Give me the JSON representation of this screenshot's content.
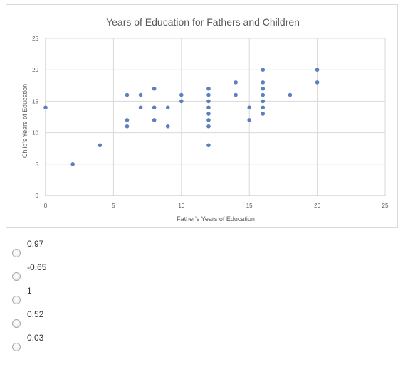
{
  "chart_data": {
    "type": "scatter",
    "title": "Years of Education for Fathers and Children",
    "xlabel": "Father's Years of Education",
    "ylabel": "Child's Years of Education",
    "xlim": [
      0,
      25
    ],
    "ylim": [
      0,
      25
    ],
    "xticks": [
      0,
      5,
      10,
      15,
      20,
      25
    ],
    "yticks": [
      0,
      5,
      10,
      15,
      20,
      25
    ],
    "grid": true,
    "marker_color": "#5b7fbf",
    "points": [
      [
        0,
        14
      ],
      [
        2,
        5
      ],
      [
        4,
        8
      ],
      [
        6,
        16
      ],
      [
        6,
        12
      ],
      [
        6,
        11
      ],
      [
        7,
        16
      ],
      [
        7,
        14
      ],
      [
        8,
        17
      ],
      [
        8,
        14
      ],
      [
        8,
        12
      ],
      [
        9,
        14
      ],
      [
        9,
        11
      ],
      [
        10,
        16
      ],
      [
        10,
        15
      ],
      [
        12,
        17
      ],
      [
        12,
        16
      ],
      [
        12,
        15
      ],
      [
        12,
        14
      ],
      [
        12,
        13
      ],
      [
        12,
        12
      ],
      [
        12,
        11
      ],
      [
        12,
        8
      ],
      [
        14,
        18
      ],
      [
        14,
        16
      ],
      [
        15,
        14
      ],
      [
        15,
        12
      ],
      [
        16,
        20
      ],
      [
        16,
        18
      ],
      [
        16,
        17
      ],
      [
        16,
        16
      ],
      [
        16,
        15
      ],
      [
        16,
        14
      ],
      [
        16,
        13
      ],
      [
        18,
        16
      ],
      [
        20,
        20
      ],
      [
        20,
        18
      ]
    ]
  },
  "options": [
    {
      "label": "0.97"
    },
    {
      "label": "-0.65"
    },
    {
      "label": "1"
    },
    {
      "label": "0.52"
    },
    {
      "label": "0.03"
    }
  ]
}
